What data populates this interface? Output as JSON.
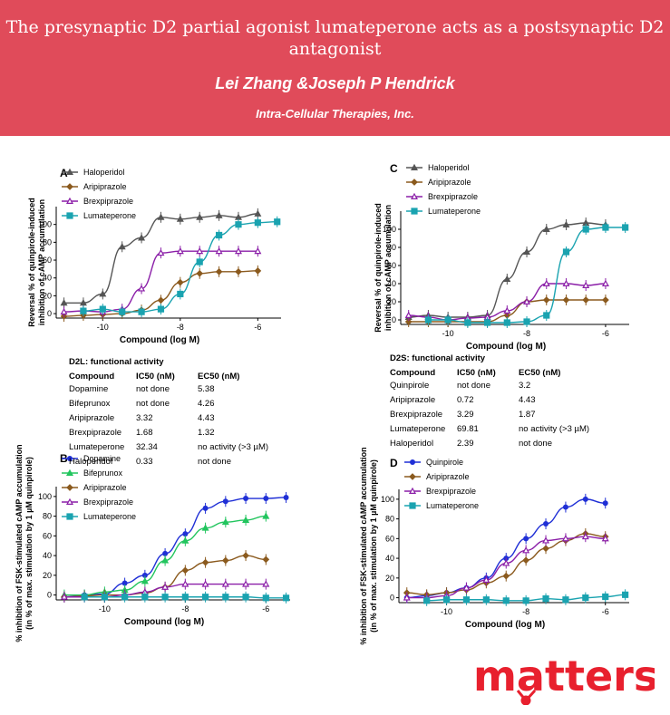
{
  "header": {
    "title": "The presynaptic D2 partial agonist lumateperone acts as a postsynaptic D2 antagonist",
    "authors": "Lei Zhang &Joseph P Hendrick",
    "affiliation": "Intra-Cellular Therapies, Inc."
  },
  "logo": {
    "text": "matters",
    "color": "#e8202e"
  },
  "colors": {
    "haloperidol": "#555555",
    "aripiprazole": "#8b5a1e",
    "brexpiprazole": "#8b1fa8",
    "lumateperone": "#1aa3b0",
    "dopamine": "#1f2fd6",
    "bifeprunox": "#22c55e",
    "quinpirole": "#1f2fd6"
  },
  "tables": [
    {
      "title": "D2L: functional activity",
      "columns": [
        "Compound",
        "IC50 (nM)",
        "EC50 (nM)"
      ],
      "rows": [
        [
          "Dopamine",
          "not done",
          "5.38"
        ],
        [
          "Bifeprunox",
          "not done",
          "4.26"
        ],
        [
          "Aripiprazole",
          "3.32",
          "4.43"
        ],
        [
          "Brexpiprazole",
          "1.68",
          "1.32"
        ],
        [
          "Lumateperone",
          "32.34",
          "no activity (>3 µM)"
        ],
        [
          "Haloperidol",
          "0.33",
          "not done"
        ]
      ]
    },
    {
      "title": "D2S: functional activity",
      "columns": [
        "Compound",
        "IC50 (nM)",
        "EC50 (nM)"
      ],
      "rows": [
        [
          "Quinpirole",
          "not done",
          "3.2"
        ],
        [
          "Aripiprazole",
          "0.72",
          "4.43"
        ],
        [
          "Brexpiprazole",
          "3.29",
          "1.87"
        ],
        [
          "Lumateperone",
          "69.81",
          "no activity (>3 µM)"
        ],
        [
          "Haloperidol",
          "2.39",
          "not done"
        ]
      ]
    }
  ],
  "chart_data": [
    {
      "panel": "A",
      "type": "line",
      "xlabel": "Compound (log M)",
      "ylabel": [
        "Reversal % of quinpirole-induced",
        "inhibition of cAMP accumulation"
      ],
      "xlim": [
        -11.2,
        -5.4
      ],
      "ylim": [
        -5,
        120
      ],
      "xticks": [
        "-10",
        "-8",
        "-6"
      ],
      "yticks": [
        "0",
        "20",
        "40",
        "60",
        "80",
        "100"
      ],
      "legend_position": "top-left",
      "series": [
        {
          "name": "Haloperidol",
          "color": "#555555",
          "marker": "triangle",
          "x": [
            -11,
            -10.5,
            -10,
            -9.5,
            -9,
            -8.5,
            -8,
            -7.5,
            -7,
            -6.5,
            -6
          ],
          "y": [
            12,
            12,
            22,
            75,
            85,
            108,
            106,
            108,
            110,
            108,
            112
          ]
        },
        {
          "name": "Aripiprazole",
          "color": "#8b5a1e",
          "marker": "diamond",
          "x": [
            -11,
            -10.5,
            -10,
            -9.5,
            -9,
            -8.5,
            -8,
            -7.5,
            -7,
            -6.5,
            -6
          ],
          "y": [
            -3,
            -2,
            -1,
            0,
            4,
            15,
            35,
            45,
            47,
            47,
            48
          ]
        },
        {
          "name": "Brexpiprazole",
          "color": "#8b1fa8",
          "marker": "triangle-open",
          "x": [
            -11,
            -10.5,
            -10,
            -9.5,
            -9,
            -8.5,
            -8,
            -7.5,
            -7,
            -6.5,
            -6
          ],
          "y": [
            2,
            3,
            2,
            5,
            28,
            68,
            70,
            70,
            70,
            70,
            70
          ]
        },
        {
          "name": "Lumateperone",
          "color": "#1aa3b0",
          "marker": "square",
          "x": [
            -10.5,
            -10,
            -9.5,
            -9,
            -8.5,
            -8,
            -7.5,
            -7,
            -6.5,
            -6,
            -5.5
          ],
          "y": [
            3,
            5,
            2,
            2,
            5,
            22,
            58,
            88,
            100,
            102,
            103
          ]
        }
      ]
    },
    {
      "panel": "B",
      "type": "line",
      "xlabel": "Compound (log M)",
      "ylabel": [
        "% inhibition of FSK-stimulated cAMP accumulation",
        "(in % of max. stimulation by 1 µM quinpirole)"
      ],
      "xlim": [
        -11.2,
        -5.4
      ],
      "ylim": [
        -5,
        110
      ],
      "xticks": [
        "-10",
        "-8",
        "-6"
      ],
      "yticks": [
        "0",
        "20",
        "40",
        "60",
        "80",
        "100"
      ],
      "legend_position": "top-left",
      "series": [
        {
          "name": "Dopamine",
          "color": "#1f2fd6",
          "marker": "circle",
          "x": [
            -11,
            -10.5,
            -10,
            -9.5,
            -9,
            -8.5,
            -8,
            -7.5,
            -7,
            -6.5,
            -6,
            -5.5
          ],
          "y": [
            -2,
            0,
            1,
            12,
            20,
            42,
            62,
            88,
            95,
            98,
            98,
            99
          ]
        },
        {
          "name": "Bifeprunox",
          "color": "#22c55e",
          "marker": "triangle",
          "x": [
            -11,
            -10.5,
            -10,
            -9.5,
            -9,
            -8.5,
            -8,
            -7.5,
            -7,
            -6.5,
            -6
          ],
          "y": [
            0,
            0,
            3,
            5,
            14,
            35,
            55,
            68,
            74,
            76,
            80
          ]
        },
        {
          "name": "Aripiprazole",
          "color": "#8b5a1e",
          "marker": "diamond",
          "x": [
            -11,
            -10.5,
            -10,
            -9.5,
            -9,
            -8.5,
            -8,
            -7.5,
            -7,
            -6.5,
            -6
          ],
          "y": [
            -2,
            -1,
            0,
            0,
            2,
            8,
            25,
            33,
            35,
            40,
            36
          ]
        },
        {
          "name": "Brexpiprazole",
          "color": "#8b1fa8",
          "marker": "triangle-open",
          "x": [
            -11,
            -10.5,
            -10,
            -9.5,
            -9,
            -8.5,
            -8,
            -7.5,
            -7,
            -6.5,
            -6
          ],
          "y": [
            -2,
            -2,
            -2,
            0,
            3,
            8,
            11,
            11,
            11,
            11,
            11
          ]
        },
        {
          "name": "Lumateperone",
          "color": "#1aa3b0",
          "marker": "square",
          "x": [
            -10.5,
            -10,
            -9.5,
            -9,
            -8.5,
            -8,
            -7.5,
            -7,
            -6.5,
            -6,
            -5.5
          ],
          "y": [
            -2,
            -2,
            -2,
            -2,
            -2,
            -2,
            -2,
            -2,
            -2,
            -3,
            -3
          ]
        }
      ]
    },
    {
      "panel": "C",
      "type": "line",
      "xlabel": "Compound (log M)",
      "ylabel": [
        "Reversal % of quinpirole-induced",
        "inhibition of cAMP accumulation"
      ],
      "xlim": [
        -11.2,
        -5.4
      ],
      "ylim": [
        -5,
        120
      ],
      "xticks": [
        "-10",
        "-8",
        "-6"
      ],
      "yticks": [
        "0",
        "20",
        "40",
        "60",
        "80",
        "100"
      ],
      "legend_position": "top-left",
      "series": [
        {
          "name": "Haloperidol",
          "color": "#555555",
          "marker": "triangle",
          "x": [
            -11,
            -10.5,
            -10,
            -9.5,
            -9,
            -8.5,
            -8,
            -7.5,
            -7,
            -6.5,
            -6
          ],
          "y": [
            3,
            5,
            3,
            3,
            5,
            45,
            75,
            100,
            105,
            107,
            105
          ]
        },
        {
          "name": "Aripiprazole",
          "color": "#8b5a1e",
          "marker": "diamond",
          "x": [
            -11,
            -10.5,
            -10,
            -9.5,
            -9,
            -8.5,
            -8,
            -7.5,
            -7,
            -6.5,
            -6
          ],
          "y": [
            -2,
            -2,
            -2,
            -2,
            -2,
            5,
            20,
            22,
            22,
            22,
            22
          ]
        },
        {
          "name": "Brexpiprazole",
          "color": "#8b1fa8",
          "marker": "triangle-open",
          "x": [
            -11,
            -10.5,
            -10,
            -9.5,
            -9,
            -8.5,
            -8,
            -7.5,
            -7,
            -6.5,
            -6
          ],
          "y": [
            5,
            3,
            0,
            2,
            3,
            10,
            20,
            40,
            40,
            38,
            40
          ]
        },
        {
          "name": "Lumateperone",
          "color": "#1aa3b0",
          "marker": "square",
          "x": [
            -10.5,
            -10,
            -9.5,
            -9,
            -8.5,
            -8,
            -7.5,
            -7,
            -6.5,
            -6,
            -5.5
          ],
          "y": [
            0,
            0,
            -3,
            -3,
            -3,
            -2,
            5,
            75,
            100,
            102,
            102
          ]
        }
      ]
    },
    {
      "panel": "D",
      "type": "line",
      "xlabel": "Compound (log M)",
      "ylabel": [
        "% inhibition of FSK-stimulated cAMP accumulation",
        "(in % of max. stimulation by 1 µM quinpirole)"
      ],
      "xlim": [
        -11.2,
        -5.4
      ],
      "ylim": [
        -5,
        110
      ],
      "xticks": [
        "-10",
        "-8",
        "-6"
      ],
      "yticks": [
        "0",
        "20",
        "40",
        "60",
        "80",
        "100"
      ],
      "legend_position": "top-left",
      "series": [
        {
          "name": "Quinpirole",
          "color": "#1f2fd6",
          "marker": "circle",
          "x": [
            -11,
            -10.5,
            -10,
            -9.5,
            -9,
            -8.5,
            -8,
            -7.5,
            -7,
            -6.5,
            -6
          ],
          "y": [
            0,
            2,
            5,
            10,
            20,
            40,
            60,
            75,
            92,
            100,
            96
          ]
        },
        {
          "name": "Aripiprazole",
          "color": "#8b5a1e",
          "marker": "diamond",
          "x": [
            -11,
            -10.5,
            -10,
            -9.5,
            -9,
            -8.5,
            -8,
            -7.5,
            -7,
            -6.5,
            -6
          ],
          "y": [
            5,
            3,
            5,
            8,
            15,
            22,
            38,
            50,
            58,
            65,
            62
          ]
        },
        {
          "name": "Brexpiprazole",
          "color": "#8b1fa8",
          "marker": "triangle-open",
          "x": [
            -11,
            -10.5,
            -10,
            -9.5,
            -9,
            -8.5,
            -8,
            -7.5,
            -7,
            -6.5,
            -6
          ],
          "y": [
            0,
            0,
            2,
            10,
            18,
            35,
            48,
            58,
            60,
            62,
            60
          ]
        },
        {
          "name": "Lumateperone",
          "color": "#1aa3b0",
          "marker": "square",
          "x": [
            -10.5,
            -10,
            -9.5,
            -9,
            -8.5,
            -8,
            -7.5,
            -7,
            -6.5,
            -6,
            -5.5
          ],
          "y": [
            -3,
            -2,
            -2,
            -2,
            -3,
            -3,
            -1,
            -2,
            0,
            1,
            3
          ]
        }
      ]
    }
  ]
}
